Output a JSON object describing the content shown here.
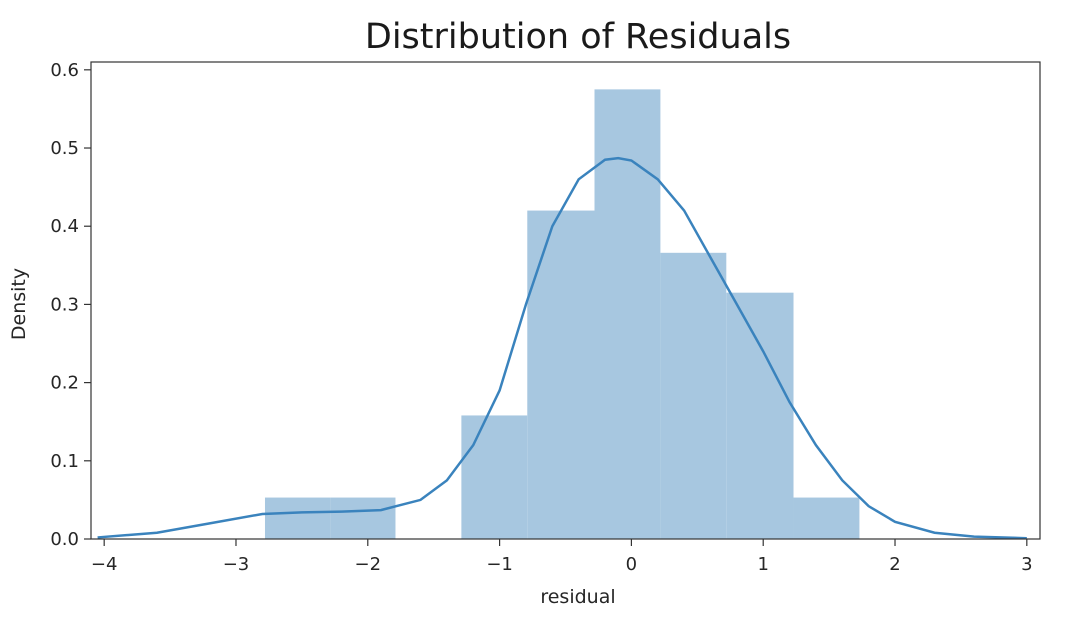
{
  "chart_data": {
    "type": "bar",
    "title": "Distribution of Residuals",
    "xlabel": "residual",
    "ylabel": "Density",
    "xlim": [
      -4.1,
      3.1
    ],
    "ylim": [
      0,
      0.61
    ],
    "x_ticks": [
      -4,
      -3,
      -2,
      -1,
      0,
      1,
      2,
      3
    ],
    "x_tick_labels": [
      "−4",
      "−3",
      "−2",
      "−1",
      "0",
      "1",
      "2",
      "3"
    ],
    "y_ticks": [
      0.0,
      0.1,
      0.2,
      0.3,
      0.4,
      0.5,
      0.6
    ],
    "y_tick_labels": [
      "0.0",
      "0.1",
      "0.2",
      "0.3",
      "0.4",
      "0.5",
      "0.6"
    ],
    "grid": false,
    "colors": {
      "bar": "#a7c7e0",
      "kde": "#3a83bd",
      "axis": "#333333"
    },
    "histogram": [
      {
        "x_start": -2.78,
        "x_end": -2.28,
        "density": 0.053
      },
      {
        "x_start": -2.28,
        "x_end": -1.79,
        "density": 0.053
      },
      {
        "x_start": -1.29,
        "x_end": -0.79,
        "density": 0.158
      },
      {
        "x_start": -0.79,
        "x_end": -0.28,
        "density": 0.42
      },
      {
        "x_start": -0.28,
        "x_end": 0.22,
        "density": 0.575
      },
      {
        "x_start": 0.22,
        "x_end": 0.72,
        "density": 0.366
      },
      {
        "x_start": 0.72,
        "x_end": 1.23,
        "density": 0.315
      },
      {
        "x_start": 1.23,
        "x_end": 1.73,
        "density": 0.053
      }
    ],
    "kde": {
      "x": [
        -4.05,
        -3.6,
        -3.2,
        -2.8,
        -2.5,
        -2.2,
        -1.9,
        -1.6,
        -1.4,
        -1.2,
        -1.0,
        -0.8,
        -0.6,
        -0.4,
        -0.2,
        -0.1,
        0.0,
        0.2,
        0.4,
        0.6,
        0.8,
        1.0,
        1.2,
        1.4,
        1.6,
        1.8,
        2.0,
        2.3,
        2.6,
        3.0
      ],
      "y": [
        0.002,
        0.008,
        0.02,
        0.032,
        0.034,
        0.035,
        0.037,
        0.05,
        0.075,
        0.12,
        0.19,
        0.3,
        0.4,
        0.46,
        0.485,
        0.487,
        0.484,
        0.46,
        0.42,
        0.36,
        0.3,
        0.24,
        0.175,
        0.12,
        0.075,
        0.042,
        0.022,
        0.008,
        0.003,
        0.001
      ]
    }
  }
}
